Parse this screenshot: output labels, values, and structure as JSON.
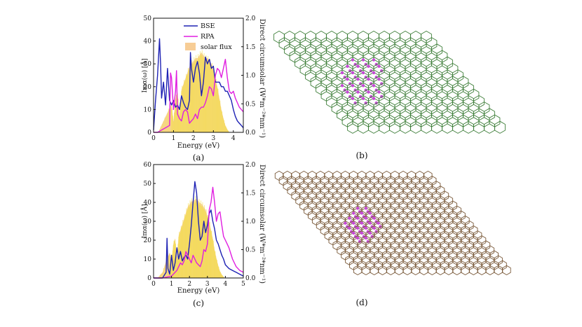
{
  "colors": {
    "bse": "#1e22b4",
    "rpa": "#e01ee0",
    "flux_fill": "#f7cd96",
    "flux_line": "#f2e03a",
    "graphene": "#3f7f3a",
    "dot": "#c64ad6",
    "hex_alt": "#7a5a3a",
    "axis": "#111111"
  },
  "panels": {
    "a": {
      "caption": "(a)"
    },
    "b": {
      "caption": "(b)"
    },
    "c": {
      "caption": "(c)"
    },
    "d": {
      "caption": "(d)"
    }
  },
  "chart_data": [
    {
      "id": "a",
      "type": "line",
      "xlabel": "Energy (eV)",
      "ylabel": "Imα(ω) [Å]",
      "y2label": "Direct circumsolar (W*m⁻²*nm⁻¹)",
      "xlim": [
        0,
        4.5
      ],
      "ylim": [
        0,
        50
      ],
      "y2lim": [
        0,
        2.0
      ],
      "xticks": [
        0,
        1,
        2,
        3,
        4
      ],
      "yticks": [
        0,
        10,
        20,
        30,
        40,
        50
      ],
      "y2ticks": [
        "0.0",
        "0.5",
        "1.0",
        "1.5",
        "2.0"
      ],
      "legend": [
        "BSE",
        "RPA",
        "solar flux"
      ],
      "series": [
        {
          "name": "BSE",
          "x": [
            0.0,
            0.1,
            0.2,
            0.3,
            0.35,
            0.4,
            0.5,
            0.6,
            0.7,
            0.8,
            0.9,
            1.0,
            1.1,
            1.2,
            1.3,
            1.4,
            1.5,
            1.6,
            1.7,
            1.8,
            1.85,
            1.9,
            2.0,
            2.1,
            2.2,
            2.3,
            2.4,
            2.5,
            2.6,
            2.7,
            2.8,
            2.9,
            3.0,
            3.1,
            3.2,
            3.3,
            3.4,
            3.5,
            3.6,
            3.7,
            3.8,
            3.9,
            4.0,
            4.1,
            4.2,
            4.3,
            4.4,
            4.5
          ],
          "values": [
            1,
            14,
            25,
            41,
            30,
            15,
            22,
            12,
            28,
            14,
            12,
            14,
            11,
            12,
            10,
            16,
            13,
            11,
            10,
            14,
            35,
            28,
            22,
            28,
            31,
            26,
            16,
            22,
            33,
            30,
            32,
            28,
            29,
            22,
            22,
            22,
            20,
            20,
            18,
            18,
            16,
            14,
            10,
            7,
            5,
            4,
            3,
            2
          ]
        },
        {
          "name": "RPA",
          "x": [
            0.0,
            0.2,
            0.4,
            0.6,
            0.8,
            0.85,
            0.9,
            1.0,
            1.1,
            1.15,
            1.2,
            1.3,
            1.4,
            1.5,
            1.6,
            1.7,
            1.8,
            1.9,
            2.0,
            2.1,
            2.2,
            2.3,
            2.4,
            2.5,
            2.6,
            2.7,
            2.8,
            2.9,
            3.0,
            3.1,
            3.2,
            3.3,
            3.4,
            3.5,
            3.6,
            3.7,
            3.8,
            3.9,
            4.0,
            4.1,
            4.2,
            4.3,
            4.4,
            4.5
          ],
          "values": [
            0,
            0,
            1,
            2,
            3,
            26,
            24,
            10,
            18,
            27,
            8,
            6,
            5,
            9,
            10,
            9,
            4,
            5,
            6,
            8,
            6,
            10,
            11,
            11,
            13,
            16,
            20,
            19,
            16,
            25,
            28,
            27,
            24,
            28,
            32,
            24,
            18,
            17,
            18,
            15,
            13,
            11,
            10,
            9
          ]
        },
        {
          "name": "solar flux",
          "x": [
            0.3,
            0.5,
            0.7,
            0.9,
            1.0,
            1.1,
            1.2,
            1.3,
            1.4,
            1.5,
            1.6,
            1.7,
            1.8,
            1.9,
            2.0,
            2.1,
            2.2,
            2.3,
            2.4,
            2.5,
            2.6,
            2.7,
            2.8,
            2.9,
            3.0,
            3.1,
            3.2,
            3.3,
            3.4,
            3.5,
            3.6,
            3.7,
            3.8
          ],
          "values": [
            0.05,
            0.2,
            0.35,
            0.5,
            0.2,
            0.6,
            0.7,
            0.3,
            0.75,
            0.85,
            0.95,
            1.05,
            1.15,
            1.2,
            1.25,
            1.3,
            1.3,
            1.35,
            1.4,
            1.35,
            1.3,
            1.3,
            1.25,
            1.2,
            1.1,
            0.95,
            0.8,
            0.6,
            0.4,
            0.25,
            0.12,
            0.05,
            0.0
          ]
        }
      ]
    },
    {
      "id": "c",
      "type": "line",
      "xlabel": "Energy (eV)",
      "ylabel": "Imα(ω) [Å]",
      "y2label": "Direct circumsolar (W*m⁻²*nm⁻¹)",
      "xlim": [
        0,
        5
      ],
      "ylim": [
        0,
        60
      ],
      "y2lim": [
        0,
        2.0
      ],
      "xticks": [
        0,
        1,
        2,
        3,
        4,
        5
      ],
      "yticks": [
        0,
        10,
        20,
        30,
        40,
        50,
        60
      ],
      "y2ticks": [
        "0.0",
        "0.5",
        "1.0",
        "1.5",
        "2.0"
      ],
      "series": [
        {
          "name": "BSE",
          "x": [
            0.0,
            0.5,
            0.7,
            0.75,
            0.8,
            0.9,
            1.0,
            1.1,
            1.2,
            1.3,
            1.4,
            1.5,
            1.6,
            1.7,
            1.8,
            1.9,
            2.0,
            2.1,
            2.2,
            2.3,
            2.4,
            2.5,
            2.6,
            2.7,
            2.8,
            2.9,
            3.0,
            3.1,
            3.2,
            3.3,
            3.4,
            3.5,
            3.6,
            3.7,
            3.8,
            3.9,
            4.0,
            4.2,
            4.4,
            4.6,
            4.8,
            5.0
          ],
          "values": [
            0,
            0,
            3,
            21,
            5,
            2,
            12,
            4,
            8,
            16,
            10,
            14,
            9,
            11,
            12,
            10,
            18,
            28,
            40,
            51,
            45,
            30,
            20,
            22,
            30,
            24,
            28,
            34,
            36,
            30,
            26,
            20,
            18,
            15,
            12,
            10,
            7,
            5,
            4,
            3,
            2,
            1
          ]
        },
        {
          "name": "RPA",
          "x": [
            0.0,
            0.5,
            1.0,
            1.2,
            1.3,
            1.4,
            1.5,
            1.6,
            1.7,
            1.8,
            1.9,
            2.0,
            2.1,
            2.2,
            2.3,
            2.4,
            2.5,
            2.6,
            2.7,
            2.8,
            2.9,
            3.0,
            3.1,
            3.2,
            3.3,
            3.4,
            3.5,
            3.6,
            3.7,
            3.8,
            3.9,
            4.0,
            4.1,
            4.2,
            4.4,
            4.6,
            4.8,
            5.0
          ],
          "values": [
            0,
            0,
            1,
            3,
            4,
            6,
            8,
            7,
            9,
            14,
            12,
            10,
            8,
            12,
            10,
            8,
            7,
            6,
            9,
            15,
            14,
            18,
            36,
            40,
            48,
            40,
            30,
            34,
            35,
            28,
            22,
            20,
            18,
            16,
            10,
            6,
            4,
            3
          ]
        },
        {
          "name": "solar flux",
          "x": [
            0.3,
            0.5,
            0.7,
            0.9,
            1.0,
            1.1,
            1.2,
            1.3,
            1.4,
            1.5,
            1.6,
            1.7,
            1.8,
            1.9,
            2.0,
            2.1,
            2.2,
            2.3,
            2.4,
            2.5,
            2.6,
            2.7,
            2.8,
            2.9,
            3.0,
            3.1,
            3.2,
            3.3,
            3.4,
            3.5,
            3.6,
            3.7,
            3.8,
            3.9,
            4.0
          ],
          "values": [
            0.03,
            0.1,
            0.3,
            0.45,
            0.3,
            0.6,
            0.7,
            0.35,
            0.75,
            0.85,
            0.95,
            1.05,
            1.15,
            1.25,
            1.3,
            1.35,
            1.35,
            1.38,
            1.4,
            1.35,
            1.32,
            1.3,
            1.25,
            1.2,
            1.1,
            1.0,
            0.85,
            0.7,
            0.5,
            0.35,
            0.22,
            0.12,
            0.06,
            0.02,
            0.0
          ]
        }
      ]
    }
  ]
}
